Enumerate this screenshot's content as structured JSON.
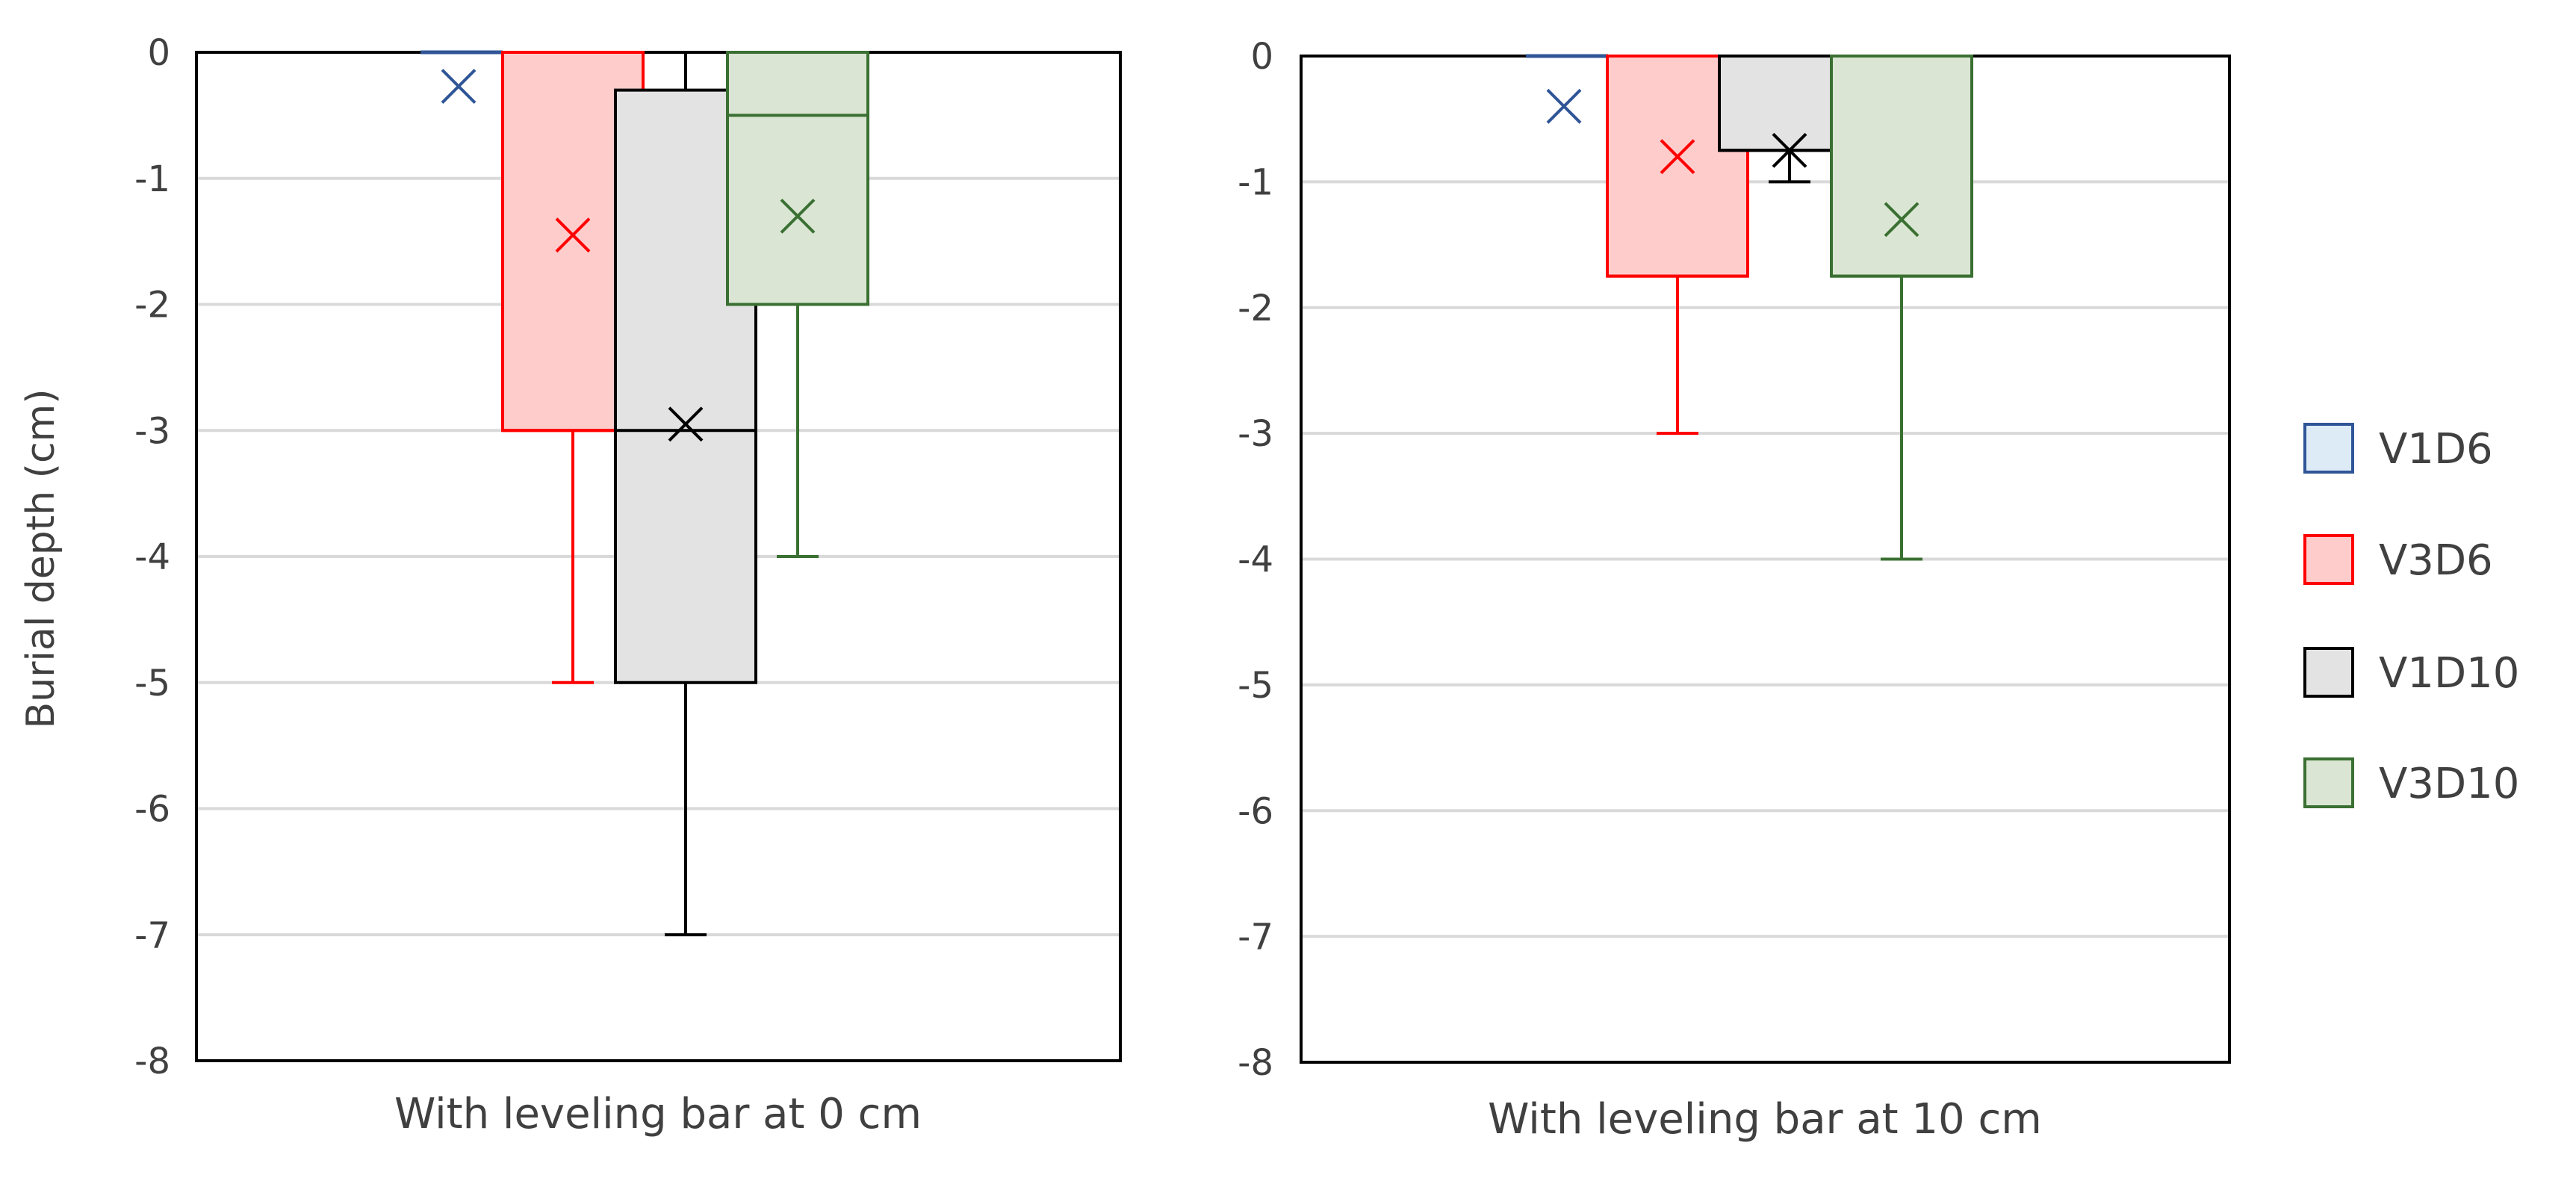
{
  "chart_data": {
    "type": "box",
    "ylabel": "Burial depth (cm)",
    "ylim": [
      -8,
      0
    ],
    "yticks": [
      0,
      -1,
      -2,
      -3,
      -4,
      -5,
      -6,
      -7,
      -8
    ],
    "grid": true,
    "legend_position": "right",
    "legend": [
      "V1D6",
      "V3D6",
      "V1D10",
      "V3D10"
    ],
    "colors": {
      "V1D6": {
        "stroke": "#2F5597",
        "fill": "#DDEBF7"
      },
      "V3D6": {
        "stroke": "#FF0000",
        "fill": "#FFCCCC"
      },
      "V1D10": {
        "stroke": "#000000",
        "fill": "#E3E3E3"
      },
      "V3D10": {
        "stroke": "#3A7032",
        "fill": "#DAE6D3"
      }
    },
    "panels": [
      {
        "xlabel": "With leveling bar at 0 cm",
        "boxes": [
          {
            "series": "V1D6",
            "q1": 0,
            "median": 0,
            "q3": 0,
            "whisker_low": 0,
            "whisker_high": 0,
            "mean": -0.27
          },
          {
            "series": "V3D6",
            "q1": -3,
            "median": -3,
            "q3": 0,
            "whisker_low": -5,
            "whisker_high": 0,
            "mean": -1.45
          },
          {
            "series": "V1D10",
            "q1": -5,
            "median": -3,
            "q3": -0.3,
            "whisker_low": -7,
            "whisker_high": 0,
            "mean": -2.95
          },
          {
            "series": "V3D10",
            "q1": -2,
            "median": -0.5,
            "q3": 0,
            "whisker_low": -4,
            "whisker_high": 0,
            "mean": -1.3
          }
        ]
      },
      {
        "xlabel": "With leveling bar at 10 cm",
        "boxes": [
          {
            "series": "V1D6",
            "q1": 0,
            "median": 0,
            "q3": 0,
            "whisker_low": 0,
            "whisker_high": 0,
            "mean": -0.4
          },
          {
            "series": "V3D6",
            "q1": -1.75,
            "median": -1.75,
            "q3": 0,
            "whisker_low": -3,
            "whisker_high": 0,
            "mean": -0.8
          },
          {
            "series": "V1D10",
            "q1": -0.75,
            "median": -0.75,
            "q3": 0,
            "whisker_low": -1,
            "whisker_high": 0,
            "mean": -0.75
          },
          {
            "series": "V3D10",
            "q1": -1.75,
            "median": -1.75,
            "q3": 0,
            "whisker_low": -4,
            "whisker_high": 0,
            "mean": -1.3
          }
        ]
      }
    ]
  }
}
